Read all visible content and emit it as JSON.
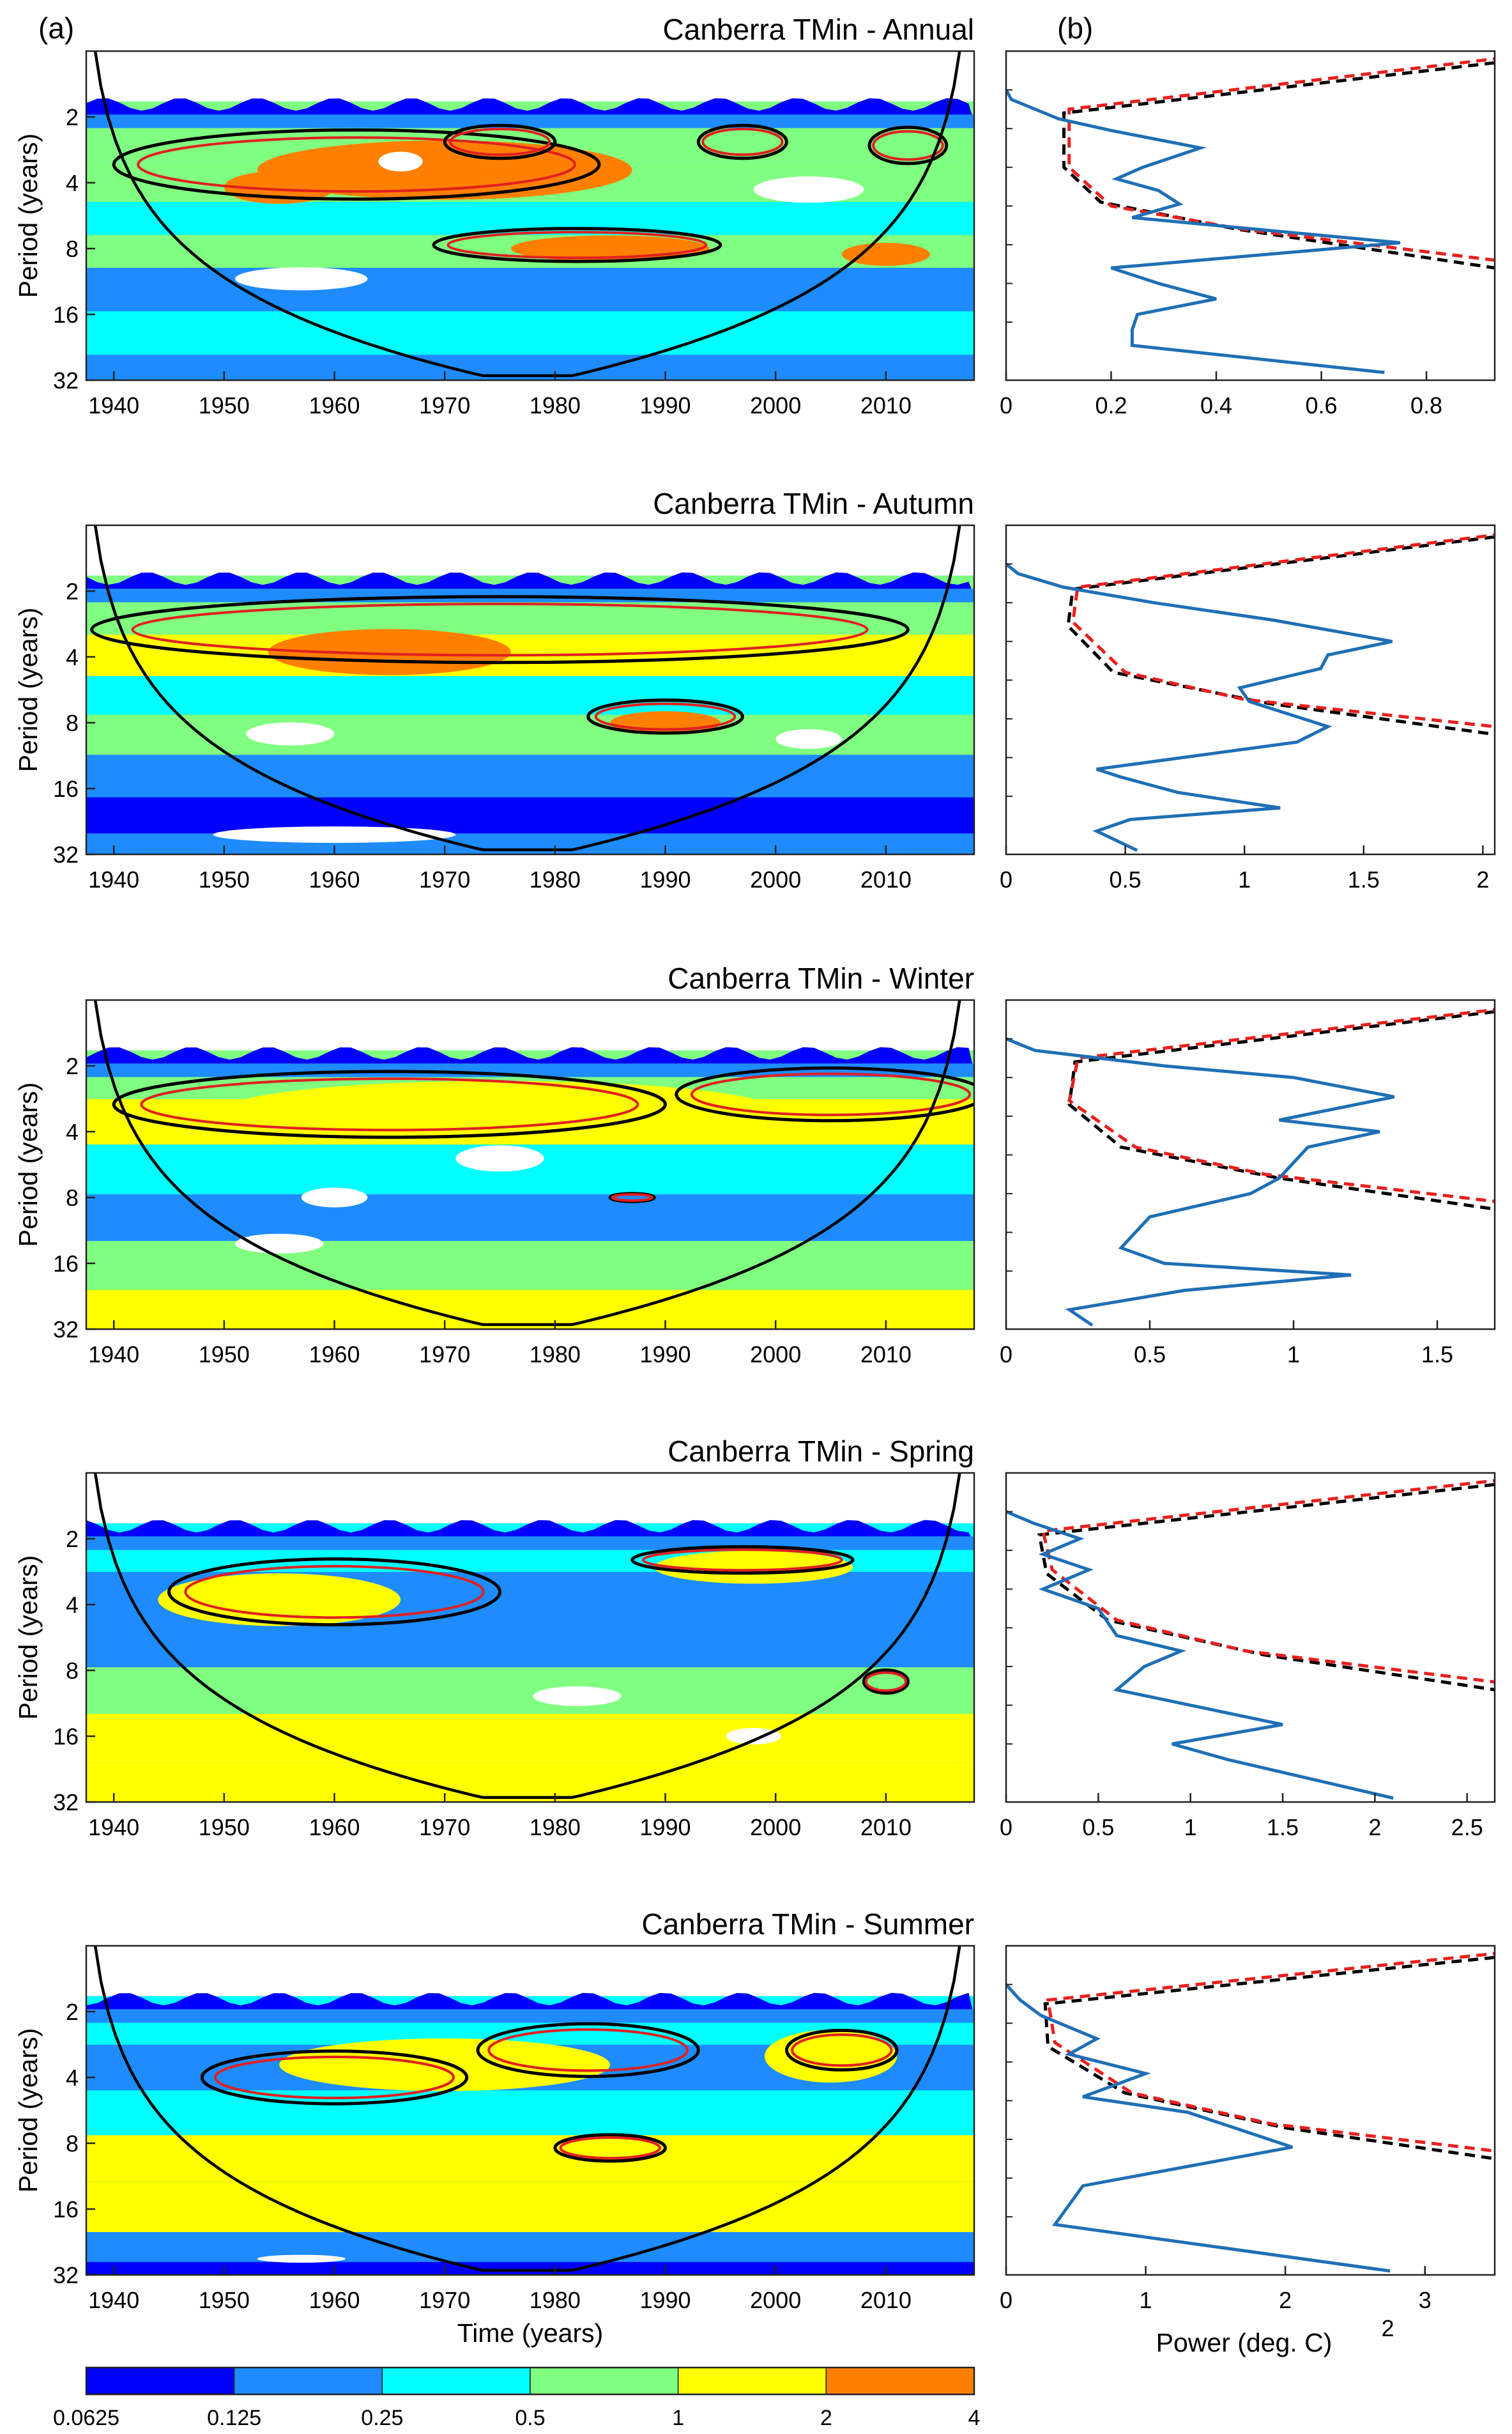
{
  "panel_labels": {
    "a": "(a)",
    "b": "(b)"
  },
  "colorbar": {
    "ticks": [
      "0.0625",
      "0.125",
      "0.25",
      "0.5",
      "1",
      "2",
      "4"
    ],
    "colors": [
      "#0000ff",
      "#1e8cff",
      "#00ffff",
      "#80ff80",
      "#ffff00",
      "#ff8000"
    ]
  },
  "colors": {
    "contour_black": "#000000",
    "contour_red": "#e02020",
    "spectrum": "#1f6fb5",
    "sig_red": "#e8201e",
    "sig_black": "#000000",
    "background": "#ffffff"
  },
  "wavelet_axes": {
    "xlabel": "Time (years)",
    "ylabel": "Period (years)",
    "xlim": [
      1937.5,
      2018
    ],
    "x_ticks": [
      1940,
      1950,
      1960,
      1970,
      1980,
      1990,
      2000,
      2010
    ],
    "ylim_log2": [
      0,
      5
    ],
    "y_ticks": [
      2,
      4,
      8,
      16,
      32
    ]
  },
  "spectrum_axes": {
    "xlabel": "Power (deg. C)",
    "xlabel_superscript": "2"
  },
  "chart_data": [
    {
      "type": "heatmap",
      "title": "Canberra TMin - Annual",
      "xlabel": "",
      "ylabel": "Period (years)",
      "color_levels": [
        0.0625,
        0.125,
        0.25,
        0.5,
        1,
        2,
        4
      ],
      "bands": [
        {
          "period": 2.5,
          "level": 4
        },
        {
          "period": 4,
          "level": 4
        },
        {
          "period": 6,
          "level": 3
        },
        {
          "period": 8,
          "level": 4
        },
        {
          "period": 12,
          "level": 2
        },
        {
          "period": 20,
          "level": 3
        },
        {
          "period": 30,
          "level": 2
        }
      ],
      "blobs": [
        {
          "t": 1970,
          "period": 3.5,
          "w": 34,
          "h": 0.9,
          "level": 6
        },
        {
          "t": 1955,
          "period": 4.2,
          "w": 10,
          "h": 0.5,
          "level": 6
        },
        {
          "t": 1985,
          "period": 8,
          "w": 18,
          "h": 0.4,
          "level": 6
        },
        {
          "t": 2010,
          "period": 8.5,
          "w": 8,
          "h": 0.35,
          "level": 6
        },
        {
          "t": 1957,
          "period": 11,
          "w": 12,
          "h": 0.35,
          "level": 0
        },
        {
          "t": 2003,
          "period": 4.3,
          "w": 10,
          "h": 0.4,
          "level": 0
        },
        {
          "t": 1966,
          "period": 3.2,
          "w": 4,
          "h": 0.3,
          "level": 0
        }
      ],
      "sig_regions": [
        {
          "t": 1962,
          "period": 3.3,
          "w": 44,
          "h": 1.05
        },
        {
          "t": 1982,
          "period": 7.7,
          "w": 26,
          "h": 0.5
        },
        {
          "t": 1975,
          "period": 2.6,
          "w": 10,
          "h": 0.5
        },
        {
          "t": 1997,
          "period": 2.6,
          "w": 8,
          "h": 0.5
        },
        {
          "t": 2012,
          "period": 2.7,
          "w": 7,
          "h": 0.55
        }
      ],
      "spectrum": {
        "xlim": [
          0,
          0.93
        ],
        "x_ticks": [
          0,
          0.2,
          0.4,
          0.6,
          0.8
        ],
        "global_power": [
          [
            0.0,
            1.0
          ],
          [
            0.01,
            1.25
          ],
          [
            0.1,
            1.75
          ],
          [
            0.2,
            2.05
          ],
          [
            0.37,
            2.5
          ],
          [
            0.26,
            3.0
          ],
          [
            0.21,
            3.3
          ],
          [
            0.29,
            3.6
          ],
          [
            0.33,
            3.95
          ],
          [
            0.24,
            4.3
          ],
          [
            0.75,
            4.95
          ],
          [
            0.2,
            5.6
          ],
          [
            0.29,
            6.0
          ],
          [
            0.4,
            6.4
          ],
          [
            0.25,
            6.8
          ],
          [
            0.24,
            7.2
          ],
          [
            0.24,
            7.6
          ],
          [
            0.72,
            8.3
          ]
        ],
        "significance_red": [
          [
            0.93,
            0.2
          ],
          [
            0.12,
            1.5
          ],
          [
            0.12,
            3.0
          ],
          [
            0.2,
            4.0
          ],
          [
            0.45,
            4.6
          ],
          [
            0.93,
            5.4
          ]
        ],
        "significance_black": [
          [
            0.93,
            0.3
          ],
          [
            0.11,
            1.6
          ],
          [
            0.11,
            3.0
          ],
          [
            0.18,
            3.9
          ],
          [
            0.44,
            4.6
          ],
          [
            0.93,
            5.6
          ]
        ]
      }
    },
    {
      "type": "heatmap",
      "title": "Canberra TMin - Autumn",
      "xlabel": "",
      "ylabel": "Period (years)",
      "color_levels": [
        0.0625,
        0.125,
        0.25,
        0.5,
        1,
        2,
        4
      ],
      "bands": [
        {
          "period": 2.5,
          "level": 4
        },
        {
          "period": 4,
          "level": 5
        },
        {
          "period": 6,
          "level": 3
        },
        {
          "period": 9,
          "level": 4
        },
        {
          "period": 14,
          "level": 2
        },
        {
          "period": 22,
          "level": 1
        },
        {
          "period": 30,
          "level": 2
        }
      ],
      "blobs": [
        {
          "t": 1965,
          "period": 3.8,
          "w": 22,
          "h": 0.7,
          "level": 6
        },
        {
          "t": 1990,
          "period": 8,
          "w": 10,
          "h": 0.35,
          "level": 6
        },
        {
          "t": 1956,
          "period": 9,
          "w": 8,
          "h": 0.35,
          "level": 0
        },
        {
          "t": 1960,
          "period": 26,
          "w": 22,
          "h": 0.25,
          "level": 0
        },
        {
          "t": 2003,
          "period": 9.5,
          "w": 6,
          "h": 0.3,
          "level": 0
        }
      ],
      "sig_regions": [
        {
          "t": 1975,
          "period": 3.0,
          "w": 74,
          "h": 1.0
        },
        {
          "t": 1990,
          "period": 7.5,
          "w": 14,
          "h": 0.5
        }
      ],
      "spectrum": {
        "xlim": [
          0,
          2.05
        ],
        "x_ticks": [
          0,
          0.5,
          1,
          1.5,
          2
        ],
        "global_power": [
          [
            0.0,
            1.0
          ],
          [
            0.05,
            1.25
          ],
          [
            0.24,
            1.6
          ],
          [
            0.62,
            2.0
          ],
          [
            1.12,
            2.45
          ],
          [
            1.62,
            3.0
          ],
          [
            1.35,
            3.35
          ],
          [
            1.32,
            3.7
          ],
          [
            0.98,
            4.2
          ],
          [
            1.02,
            4.55
          ],
          [
            1.35,
            5.2
          ],
          [
            1.22,
            5.6
          ],
          [
            0.38,
            6.3
          ],
          [
            0.48,
            6.5
          ],
          [
            0.72,
            6.9
          ],
          [
            1.15,
            7.3
          ],
          [
            0.52,
            7.6
          ],
          [
            0.38,
            7.9
          ],
          [
            0.55,
            8.4
          ]
        ],
        "significance_red": [
          [
            2.05,
            0.25
          ],
          [
            0.3,
            1.6
          ],
          [
            0.28,
            2.5
          ],
          [
            0.5,
            3.8
          ],
          [
            1.0,
            4.5
          ],
          [
            2.05,
            5.2
          ]
        ],
        "significance_black": [
          [
            2.05,
            0.3
          ],
          [
            0.28,
            1.65
          ],
          [
            0.26,
            2.6
          ],
          [
            0.45,
            3.8
          ],
          [
            1.1,
            4.6
          ],
          [
            2.05,
            5.4
          ]
        ]
      }
    },
    {
      "type": "heatmap",
      "title": "Canberra TMin - Winter",
      "xlabel": "",
      "ylabel": "Period (years)",
      "color_levels": [
        0.0625,
        0.125,
        0.25,
        0.5,
        1,
        2,
        4
      ],
      "bands": [
        {
          "period": 2.3,
          "level": 4
        },
        {
          "period": 3.5,
          "level": 5
        },
        {
          "period": 6,
          "level": 3
        },
        {
          "period": 10,
          "level": 2
        },
        {
          "period": 16,
          "level": 4
        },
        {
          "period": 28,
          "level": 5
        }
      ],
      "blobs": [
        {
          "t": 1975,
          "period": 3.2,
          "w": 50,
          "h": 0.9,
          "level": 5
        },
        {
          "t": 1975,
          "period": 5.3,
          "w": 8,
          "h": 0.4,
          "level": 0
        },
        {
          "t": 1960,
          "period": 8,
          "w": 6,
          "h": 0.3,
          "level": 0
        },
        {
          "t": 1955,
          "period": 13,
          "w": 8,
          "h": 0.3,
          "level": 0
        }
      ],
      "sig_regions": [
        {
          "t": 1965,
          "period": 3.0,
          "w": 50,
          "h": 1.0
        },
        {
          "t": 2005,
          "period": 2.7,
          "w": 28,
          "h": 0.8
        },
        {
          "t": 1987,
          "period": 8,
          "w": 4,
          "h": 0.12
        }
      ],
      "spectrum": {
        "xlim": [
          0,
          1.7
        ],
        "x_ticks": [
          0,
          0.5,
          1,
          1.5
        ],
        "global_power": [
          [
            0.0,
            1.0
          ],
          [
            0.1,
            1.3
          ],
          [
            0.55,
            1.7
          ],
          [
            1.0,
            2.0
          ],
          [
            1.35,
            2.5
          ],
          [
            0.95,
            3.1
          ],
          [
            1.3,
            3.4
          ],
          [
            1.05,
            3.8
          ],
          [
            0.95,
            4.6
          ],
          [
            0.85,
            5.0
          ],
          [
            0.5,
            5.6
          ],
          [
            0.45,
            6.0
          ],
          [
            0.4,
            6.4
          ],
          [
            0.55,
            6.8
          ],
          [
            1.2,
            7.1
          ],
          [
            0.62,
            7.5
          ],
          [
            0.22,
            8.0
          ],
          [
            0.3,
            8.4
          ]
        ],
        "significance_red": [
          [
            1.7,
            0.25
          ],
          [
            0.25,
            1.5
          ],
          [
            0.22,
            2.6
          ],
          [
            0.45,
            3.8
          ],
          [
            0.9,
            4.5
          ],
          [
            1.7,
            5.2
          ]
        ],
        "significance_black": [
          [
            1.7,
            0.3
          ],
          [
            0.24,
            1.6
          ],
          [
            0.22,
            2.7
          ],
          [
            0.4,
            3.8
          ],
          [
            0.95,
            4.6
          ],
          [
            1.7,
            5.4
          ]
        ]
      }
    },
    {
      "type": "heatmap",
      "title": "Canberra TMin - Spring",
      "xlabel": "",
      "ylabel": "Period (years)",
      "color_levels": [
        0.0625,
        0.125,
        0.25,
        0.5,
        1,
        2,
        4
      ],
      "bands": [
        {
          "period": 2.3,
          "level": 3
        },
        {
          "period": 3.5,
          "level": 2
        },
        {
          "period": 6,
          "level": 2
        },
        {
          "period": 10,
          "level": 4
        },
        {
          "period": 16,
          "level": 5
        },
        {
          "period": 28,
          "level": 5
        }
      ],
      "blobs": [
        {
          "t": 1955,
          "period": 3.8,
          "w": 22,
          "h": 0.8,
          "level": 5
        },
        {
          "t": 1998,
          "period": 2.7,
          "w": 18,
          "h": 0.5,
          "level": 5
        },
        {
          "t": 1982,
          "period": 10.5,
          "w": 8,
          "h": 0.3,
          "level": 0
        },
        {
          "t": 1998,
          "period": 16,
          "w": 5,
          "h": 0.25,
          "level": 0
        }
      ],
      "sig_regions": [
        {
          "t": 1960,
          "period": 3.5,
          "w": 30,
          "h": 1.0
        },
        {
          "t": 1997,
          "period": 2.5,
          "w": 20,
          "h": 0.4
        },
        {
          "t": 2010,
          "period": 9,
          "w": 4,
          "h": 0.35
        }
      ],
      "spectrum": {
        "xlim": [
          0,
          2.65
        ],
        "x_ticks": [
          0,
          0.5,
          1,
          1.5,
          2,
          2.5
        ],
        "global_power": [
          [
            0.0,
            1.0
          ],
          [
            0.15,
            1.3
          ],
          [
            0.4,
            1.7
          ],
          [
            0.2,
            2.1
          ],
          [
            0.45,
            2.5
          ],
          [
            0.2,
            3.0
          ],
          [
            0.5,
            3.5
          ],
          [
            0.6,
            4.2
          ],
          [
            0.95,
            4.6
          ],
          [
            0.75,
            5.0
          ],
          [
            0.6,
            5.6
          ],
          [
            1.1,
            6.1
          ],
          [
            1.5,
            6.5
          ],
          [
            0.9,
            7.0
          ],
          [
            1.2,
            7.4
          ],
          [
            2.1,
            8.4
          ]
        ],
        "significance_red": [
          [
            2.65,
            0.2
          ],
          [
            0.2,
            1.5
          ],
          [
            0.25,
            2.5
          ],
          [
            0.6,
            3.8
          ],
          [
            1.3,
            4.6
          ],
          [
            2.65,
            5.4
          ]
        ],
        "significance_black": [
          [
            2.65,
            0.3
          ],
          [
            0.18,
            1.6
          ],
          [
            0.22,
            2.6
          ],
          [
            0.55,
            3.8
          ],
          [
            1.4,
            4.7
          ],
          [
            2.65,
            5.6
          ]
        ]
      }
    },
    {
      "type": "heatmap",
      "title": "Canberra TMin - Summer",
      "xlabel": "Time (years)",
      "ylabel": "Period (years)",
      "color_levels": [
        0.0625,
        0.125,
        0.25,
        0.5,
        1,
        2,
        4
      ],
      "bands": [
        {
          "period": 2.3,
          "level": 3
        },
        {
          "period": 3.5,
          "level": 2
        },
        {
          "period": 6,
          "level": 3
        },
        {
          "period": 9,
          "level": 5
        },
        {
          "period": 16,
          "level": 5
        },
        {
          "period": 26,
          "level": 2
        },
        {
          "period": 30,
          "level": 1
        }
      ],
      "blobs": [
        {
          "t": 1970,
          "period": 3.5,
          "w": 30,
          "h": 0.8,
          "level": 5
        },
        {
          "t": 2005,
          "period": 3.2,
          "w": 12,
          "h": 0.8,
          "level": 5
        },
        {
          "t": 1957,
          "period": 27,
          "w": 8,
          "h": 0.12,
          "level": 0
        }
      ],
      "sig_regions": [
        {
          "t": 1960,
          "period": 4.0,
          "w": 24,
          "h": 0.8
        },
        {
          "t": 1983,
          "period": 3.0,
          "w": 20,
          "h": 0.8
        },
        {
          "t": 1985,
          "period": 8.4,
          "w": 10,
          "h": 0.4
        },
        {
          "t": 2006,
          "period": 3.0,
          "w": 10,
          "h": 0.6
        }
      ],
      "spectrum": {
        "xlim": [
          0,
          3.5
        ],
        "x_ticks": [
          0,
          1,
          2,
          3
        ],
        "global_power": [
          [
            0.0,
            1.0
          ],
          [
            0.1,
            1.4
          ],
          [
            0.25,
            1.8
          ],
          [
            0.65,
            2.4
          ],
          [
            0.45,
            2.8
          ],
          [
            1.0,
            3.3
          ],
          [
            0.55,
            3.9
          ],
          [
            1.3,
            4.3
          ],
          [
            2.05,
            5.2
          ],
          [
            0.55,
            6.2
          ],
          [
            0.35,
            7.2
          ],
          [
            2.75,
            8.4
          ]
        ],
        "significance_red": [
          [
            3.5,
            0.2
          ],
          [
            0.3,
            1.4
          ],
          [
            0.35,
            2.5
          ],
          [
            0.9,
            3.8
          ],
          [
            1.9,
            4.6
          ],
          [
            3.5,
            5.3
          ]
        ],
        "significance_black": [
          [
            3.5,
            0.3
          ],
          [
            0.28,
            1.5
          ],
          [
            0.3,
            2.6
          ],
          [
            0.85,
            3.8
          ],
          [
            2.0,
            4.7
          ],
          [
            3.5,
            5.5
          ]
        ]
      }
    }
  ]
}
